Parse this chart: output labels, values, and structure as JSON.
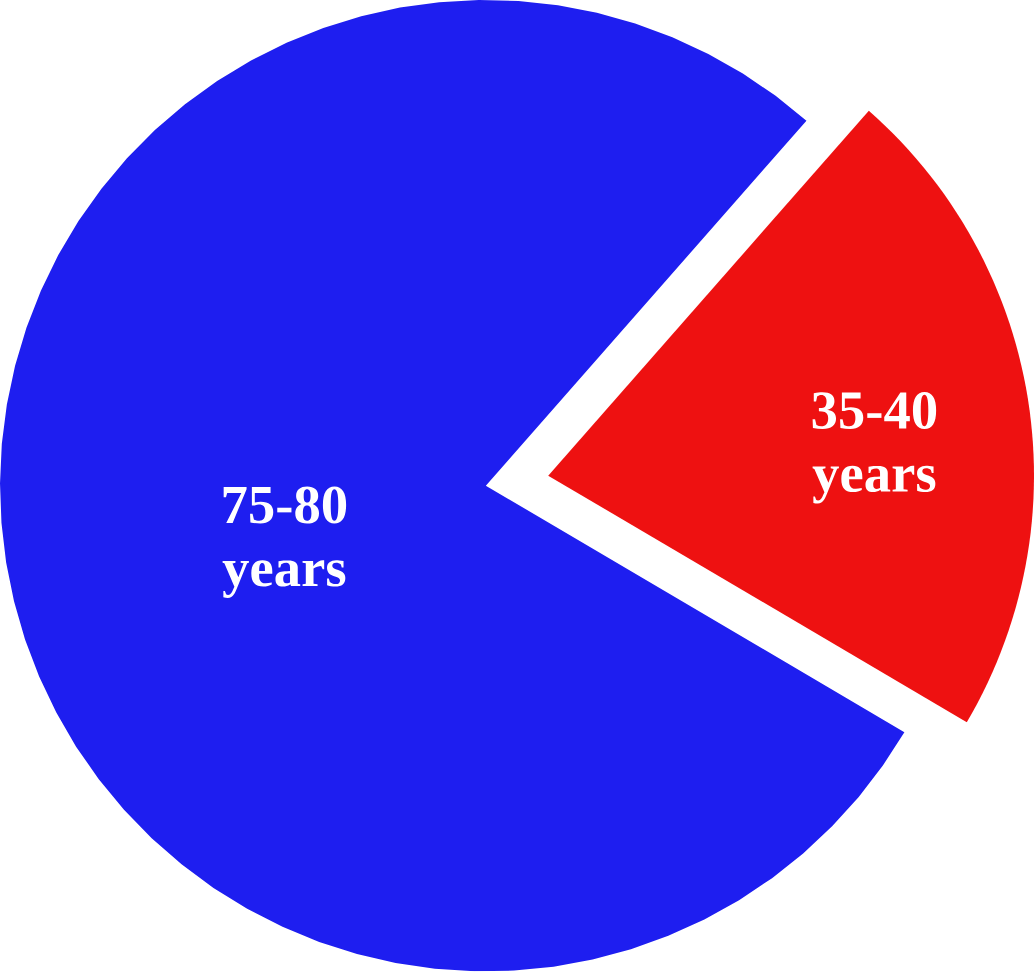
{
  "chart_data": {
    "type": "pie",
    "categories": [
      "75-80 years",
      "35-40 years"
    ],
    "values": [
      78,
      22
    ],
    "colors": [
      "#1e1ef0",
      "#ee1111"
    ]
  }
}
